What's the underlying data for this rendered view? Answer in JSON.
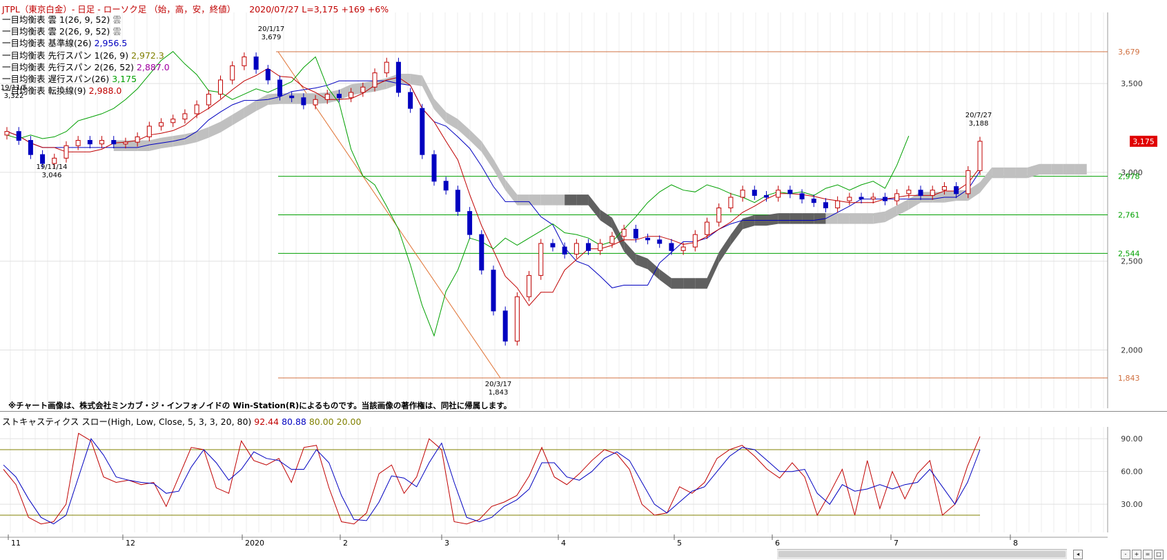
{
  "header": {
    "symbol": "JTPL（東京白金）- 日足 - ローソク足 （始，高，安，終値）",
    "date": "2020/07/27",
    "last": "L=3,175",
    "change": "+169",
    "pct": "+6%"
  },
  "legend": [
    {
      "label": "一目均衡表 雲 1(26, 9, 52)",
      "value": "雲",
      "color": "#808080"
    },
    {
      "label": "一目均衡表 雲 2(26, 9, 52)",
      "value": "雲",
      "color": "#808080"
    },
    {
      "label": "一目均衡表 基準線(26)",
      "value": "2,956.5",
      "color": "#0000c0"
    },
    {
      "label": "一目均衡表 先行スパン 1(26, 9)",
      "value": "2,972.3",
      "color": "#808000"
    },
    {
      "label": "一目均衡表 先行スパン 2(26, 52)",
      "value": "2,887.0",
      "color": "#a000a0"
    },
    {
      "label": "一目均衡表 遅行スパン(26)",
      "value": "3,175",
      "color": "#00a000"
    },
    {
      "label": "一目均衡表 転換線(9)",
      "value": "2,988.0",
      "color": "#c00000"
    }
  ],
  "copyright": "※チャート画像は、株式会社ミンカブ・ジ・インフォノイドの Win-Station(R)によるものです。当該画像の著作権は、同社に帰属します。",
  "stoch_header": {
    "label": "ストキャスティクス スロー(High, Low, Close, 5, 3, 3, 20, 80)",
    "k": "92.44",
    "d": "80.88",
    "upper": "80.00",
    "lower": "20.00"
  },
  "colors": {
    "up": "#c00000",
    "down": "#0000c0",
    "grid": "#e4e4e4",
    "cloud_light": "#c0c0c0",
    "cloud_dark": "#606060"
  },
  "chart_data": [
    {
      "type": "candlestick",
      "ylim": [
        1700,
        3800
      ],
      "y_ticks": [
        "3,500",
        "3,000",
        "2,500",
        "2,000"
      ],
      "y_tick_values": [
        3500,
        3000,
        2500,
        2000
      ],
      "x_ticks": [
        "11",
        "12",
        "2020",
        "2",
        "3",
        "4",
        "5",
        "6",
        "7",
        "8"
      ],
      "last_price_label": "3,175",
      "last_price": 3175,
      "retracement_levels": [
        {
          "label": "3,679",
          "value": 3679,
          "color": "#d07040"
        },
        {
          "label": "2,978",
          "value": 2978,
          "color": "#00a000"
        },
        {
          "label": "2,761",
          "value": 2761,
          "color": "#00a000"
        },
        {
          "label": "2,544",
          "value": 2544,
          "color": "#00a000"
        },
        {
          "label": "1,843",
          "value": 1843,
          "color": "#d07040"
        }
      ],
      "annotations": [
        {
          "date": "19/11/5",
          "price": "3,322"
        },
        {
          "date": "19/11/14",
          "price": "3,046"
        },
        {
          "date": "20/1/17",
          "price": "3,679"
        },
        {
          "date": "20/3/17",
          "price": "1,843"
        },
        {
          "date": "20/7/27",
          "price": "3,188"
        }
      ],
      "close_path": [
        3230,
        3180,
        3100,
        3050,
        3080,
        3150,
        3180,
        3160,
        3180,
        3160,
        3170,
        3200,
        3260,
        3280,
        3300,
        3330,
        3380,
        3440,
        3520,
        3600,
        3650,
        3580,
        3520,
        3430,
        3420,
        3380,
        3410,
        3440,
        3420,
        3450,
        3480,
        3560,
        3620,
        3450,
        3360,
        3100,
        2950,
        2900,
        2780,
        2650,
        2450,
        2220,
        2050,
        2300,
        2420,
        2600,
        2580,
        2540,
        2600,
        2560,
        2600,
        2640,
        2680,
        2630,
        2620,
        2600,
        2560,
        2580,
        2650,
        2720,
        2800,
        2860,
        2900,
        2870,
        2860,
        2900,
        2880,
        2850,
        2830,
        2800,
        2840,
        2860,
        2850,
        2860,
        2840,
        2880,
        2900,
        2870,
        2900,
        2920,
        2880,
        3010,
        3175
      ]
    },
    {
      "type": "line",
      "ylim": [
        0,
        110
      ],
      "y_ticks": [
        "90.00",
        "60.00",
        "30.00"
      ],
      "y_tick_values": [
        90,
        60,
        30
      ],
      "series": [
        {
          "name": "%K",
          "color": "#c00000",
          "values": [
            62,
            48,
            18,
            12,
            14,
            30,
            95,
            88,
            55,
            50,
            52,
            48,
            50,
            28,
            55,
            82,
            80,
            45,
            40,
            88,
            70,
            66,
            72,
            50,
            82,
            84,
            45,
            14,
            12,
            22,
            58,
            66,
            40,
            55,
            90,
            80,
            14,
            12,
            16,
            28,
            32,
            38,
            56,
            82,
            55,
            48,
            58,
            70,
            80,
            76,
            62,
            30,
            20,
            22,
            46,
            40,
            50,
            72,
            80,
            84,
            74,
            62,
            54,
            68,
            55,
            20,
            40,
            62,
            20,
            70,
            26,
            60,
            35,
            58,
            70,
            20,
            30,
            65,
            92
          ]
        },
        {
          "name": "%D",
          "color": "#0000c0",
          "values": [
            66,
            55,
            35,
            18,
            12,
            20,
            55,
            90,
            75,
            55,
            52,
            50,
            49,
            40,
            42,
            64,
            80,
            68,
            52,
            62,
            78,
            72,
            70,
            62,
            62,
            80,
            68,
            38,
            16,
            15,
            32,
            56,
            54,
            46,
            68,
            86,
            50,
            18,
            14,
            18,
            28,
            34,
            44,
            68,
            68,
            55,
            52,
            60,
            72,
            78,
            70,
            50,
            30,
            22,
            32,
            42,
            46,
            60,
            74,
            82,
            80,
            70,
            60,
            60,
            62,
            40,
            30,
            48,
            42,
            44,
            48,
            44,
            48,
            50,
            62,
            46,
            30,
            50,
            80
          ]
        }
      ]
    }
  ]
}
